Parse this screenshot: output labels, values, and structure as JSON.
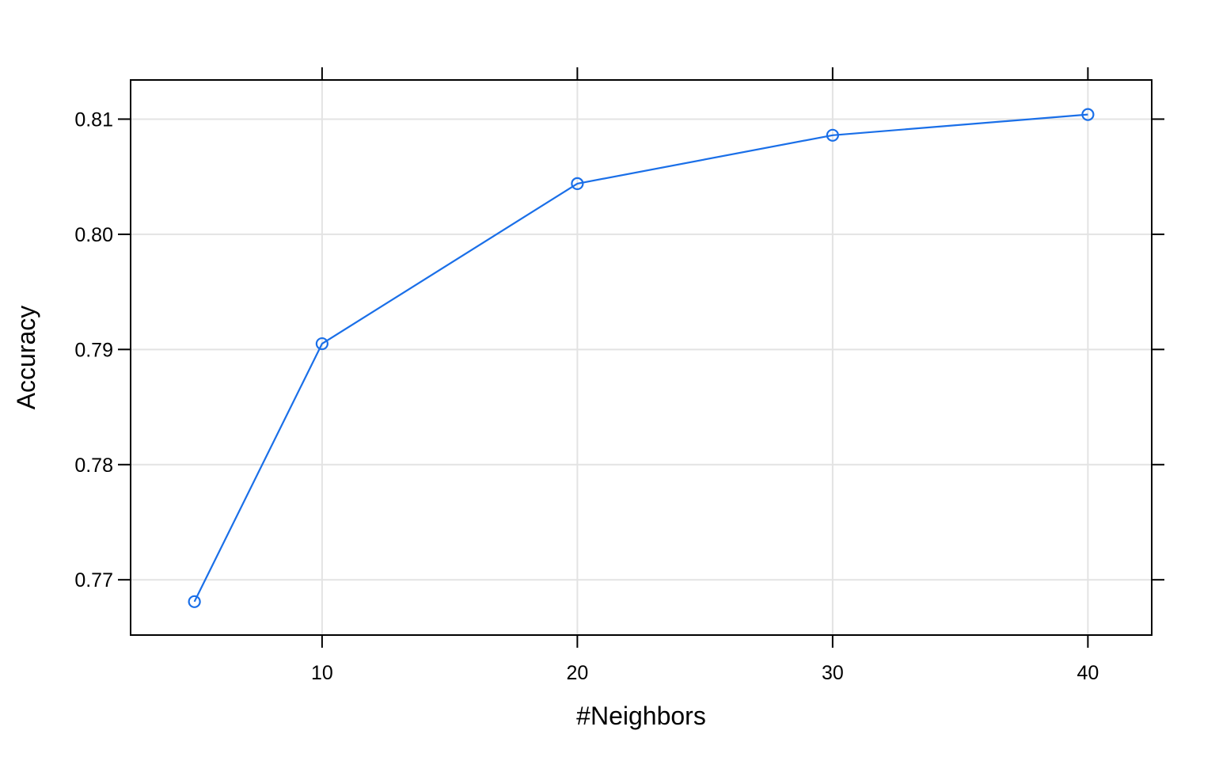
{
  "chart_data": {
    "type": "line",
    "xlabel": "#Neighbors",
    "ylabel": "Accuracy",
    "x": [
      5,
      10,
      20,
      30,
      40
    ],
    "series": [
      {
        "values": [
          0.7681,
          0.7905,
          0.8044,
          0.8086,
          0.8104
        ],
        "color": "#1a6fe8",
        "marker": "open-circle"
      }
    ],
    "xlim": [
      2.5,
      42.5
    ],
    "ylim": [
      0.7652,
      0.8134
    ],
    "x_ticks": [
      10,
      20,
      30,
      40
    ],
    "x_tick_labels": [
      "10",
      "20",
      "30",
      "40"
    ],
    "y_ticks": [
      0.77,
      0.78,
      0.79,
      0.8,
      0.81
    ],
    "y_tick_labels": [
      "0.77",
      "0.78",
      "0.79",
      "0.80",
      "0.81"
    ],
    "grid": true,
    "grid_color": "#e3e3e3",
    "axis_color": "#000000",
    "ticks_on_all_sides": true
  }
}
